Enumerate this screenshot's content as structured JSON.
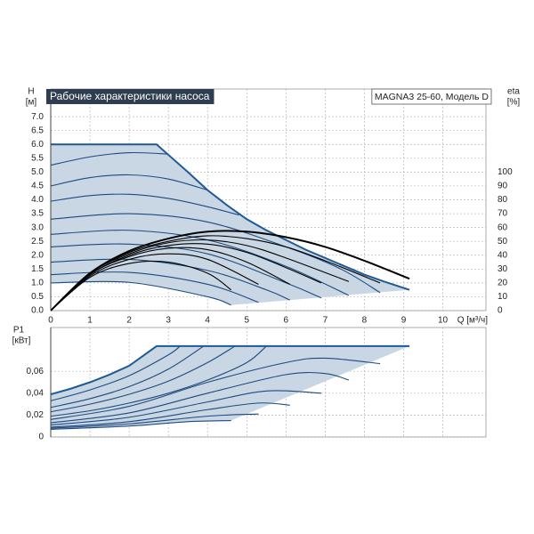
{
  "chart_data": [
    {
      "type": "line",
      "title": "Рабочие характеристики насоса",
      "annotation": "MAGNA3 25-60, Модель D",
      "ylabel": "H",
      "yunit": "[м]",
      "y2label": "eta",
      "y2unit": "[%]",
      "xlabel": "Q [м³/ч]",
      "xlim": [
        0,
        11.1
      ],
      "xticks": [
        0,
        1,
        2,
        3,
        4,
        5,
        6,
        7,
        8,
        9,
        10
      ],
      "ylim": [
        0,
        8
      ],
      "yticks": [
        {
          "value": 0,
          "label": "0.0"
        },
        0.5,
        {
          "value": 1,
          "label": "1.0"
        },
        1.5,
        {
          "value": 2,
          "label": "2.0"
        },
        2.5,
        {
          "value": 3,
          "label": "3.0"
        },
        3.5,
        {
          "value": 4,
          "label": "4.0"
        },
        4.5,
        {
          "value": 5,
          "label": "5.0"
        },
        5.5,
        {
          "value": 6,
          "label": "6.0"
        },
        6.5,
        {
          "value": 7,
          "label": "7.0"
        }
      ],
      "y2lim": [
        0,
        160
      ],
      "y2ticks": [
        0,
        10,
        20,
        30,
        40,
        50,
        60,
        70,
        80,
        90,
        100
      ],
      "grid": true,
      "fill_color": "#c9d6e4",
      "series": [
        {
          "color": "#1f5a94",
          "line_width": 2,
          "smooth": false,
          "x": [
            0,
            2.7,
            3.1,
            3.5,
            4,
            4.5,
            5,
            5.5,
            6,
            6.5,
            7,
            7.5,
            8,
            8.5,
            9.15
          ],
          "values": [
            6,
            6,
            5.5,
            5.0,
            4.35,
            3.8,
            3.3,
            2.9,
            2.55,
            2.2,
            1.9,
            1.6,
            1.3,
            1.05,
            0.75
          ]
        },
        {
          "color": "#1d4a7e",
          "x": [
            0,
            1,
            2,
            3
          ],
          "values": [
            5.25,
            5.55,
            5.7,
            5.65
          ]
        },
        {
          "color": "#1d4a7e",
          "x": [
            0,
            1,
            2,
            3,
            4
          ],
          "values": [
            4.5,
            4.8,
            4.9,
            4.75,
            4.35
          ]
        },
        {
          "color": "#1d4a7e",
          "x": [
            0,
            1,
            2,
            3,
            4,
            4.8
          ],
          "values": [
            3.95,
            4.15,
            4.2,
            4.05,
            3.75,
            3.45
          ]
        },
        {
          "color": "#1d4a7e",
          "x": [
            0,
            2,
            4,
            6,
            7.4,
            8.4
          ],
          "values": [
            3.3,
            3.5,
            3.2,
            2.3,
            1.5,
            0.65
          ]
        },
        {
          "color": "#1d4a7e",
          "x": [
            0,
            2,
            4,
            6,
            7.6
          ],
          "values": [
            2.75,
            2.9,
            2.55,
            1.6,
            0.55
          ]
        },
        {
          "color": "#1d4a7e",
          "x": [
            0,
            2,
            4,
            6,
            6.9
          ],
          "values": [
            2.3,
            2.4,
            2.05,
            1.0,
            0.46
          ]
        },
        {
          "color": "#1d4a7e",
          "x": [
            0,
            2,
            4,
            5.5,
            6.1
          ],
          "values": [
            1.75,
            1.85,
            1.45,
            0.75,
            0.38
          ]
        },
        {
          "color": "#1d4a7e",
          "x": [
            0,
            2,
            4,
            5.3
          ],
          "values": [
            1.3,
            1.38,
            0.95,
            0.3
          ]
        },
        {
          "color": "#1d4a7e",
          "x": [
            0,
            2,
            4,
            4.6
          ],
          "values": [
            1.0,
            1.02,
            0.5,
            0.2
          ]
        },
        {
          "color": "#000000",
          "line_width": 2,
          "axis": "y2",
          "x": [
            0,
            1,
            2,
            3,
            4,
            5,
            6,
            7,
            8,
            9.15
          ],
          "values": [
            0,
            27,
            43,
            52,
            57,
            57,
            53,
            46,
            36,
            23
          ]
        },
        {
          "color": "#000000",
          "axis": "y2",
          "x": [
            0,
            1,
            2,
            3,
            4,
            5,
            6,
            7,
            8.4
          ],
          "values": [
            0,
            27,
            42,
            50,
            54,
            52,
            46,
            36,
            20
          ]
        },
        {
          "color": "#000000",
          "axis": "y2",
          "x": [
            0,
            1,
            2,
            3,
            4,
            5,
            6,
            7.6
          ],
          "values": [
            0,
            27,
            41,
            49,
            51,
            47,
            38,
            21
          ]
        },
        {
          "color": "#000000",
          "axis": "y2",
          "x": [
            0,
            1,
            2,
            3,
            4,
            5,
            6,
            6.9
          ],
          "values": [
            0,
            26,
            40,
            47,
            48,
            42,
            31,
            20
          ]
        },
        {
          "color": "#000000",
          "axis": "y2",
          "x": [
            0,
            1,
            2,
            3,
            4,
            5,
            6.1
          ],
          "values": [
            0,
            26,
            39,
            45,
            44,
            35,
            19
          ]
        },
        {
          "color": "#000000",
          "axis": "y2",
          "x": [
            0,
            1,
            2,
            3,
            4,
            5.3
          ],
          "values": [
            0,
            25,
            37,
            41,
            37,
            19
          ]
        },
        {
          "color": "#000000",
          "axis": "y2",
          "x": [
            0,
            1,
            2,
            3,
            4,
            4.6
          ],
          "values": [
            0,
            24,
            34,
            35,
            27,
            15
          ]
        }
      ]
    },
    {
      "type": "line",
      "ylabel": "P1",
      "yunit": "[кВт]",
      "ylim": [
        0,
        0.1
      ],
      "yticks": [
        0,
        {
          "value": 0.02,
          "label": "0,02"
        },
        {
          "value": 0.04,
          "label": "0,04"
        },
        {
          "value": 0.06,
          "label": "0,06"
        }
      ],
      "grid": true,
      "fill_color": "#c9d6e4",
      "series": [
        {
          "color": "#1f5a94",
          "line_width": 2,
          "smooth": false,
          "x": [
            0,
            0.5,
            1,
            1.5,
            2,
            2.7,
            9.15
          ],
          "values": [
            0.039,
            0.044,
            0.05,
            0.057,
            0.065,
            0.083,
            0.083
          ]
        },
        {
          "color": "#1d4a7e",
          "x": [
            0,
            1,
            2,
            3,
            3.3
          ],
          "values": [
            0.033,
            0.043,
            0.056,
            0.075,
            0.083
          ]
        },
        {
          "color": "#1d4a7e",
          "x": [
            0,
            1,
            2,
            3,
            3.9
          ],
          "values": [
            0.027,
            0.035,
            0.046,
            0.062,
            0.083
          ]
        },
        {
          "color": "#1d4a7e",
          "x": [
            0,
            1,
            2,
            3,
            4,
            4.7
          ],
          "values": [
            0.023,
            0.03,
            0.039,
            0.051,
            0.068,
            0.083
          ]
        },
        {
          "color": "#1d4a7e",
          "x": [
            0,
            1,
            2,
            3,
            4,
            5,
            5.5
          ],
          "values": [
            0.019,
            0.024,
            0.031,
            0.04,
            0.052,
            0.068,
            0.083
          ]
        },
        {
          "color": "#1d4a7e",
          "x": [
            0,
            2,
            4,
            6,
            7,
            8.4
          ],
          "values": [
            0.016,
            0.028,
            0.05,
            0.068,
            0.072,
            0.067
          ]
        },
        {
          "color": "#1d4a7e",
          "x": [
            0,
            2,
            4,
            6,
            7,
            7.6
          ],
          "values": [
            0.013,
            0.022,
            0.04,
            0.057,
            0.058,
            0.052
          ]
        },
        {
          "color": "#1d4a7e",
          "x": [
            0,
            2,
            4,
            5.5,
            6.9
          ],
          "values": [
            0.011,
            0.018,
            0.032,
            0.042,
            0.04
          ]
        },
        {
          "color": "#1d4a7e",
          "x": [
            0,
            2,
            4,
            5.3,
            6.1
          ],
          "values": [
            0.009,
            0.014,
            0.025,
            0.031,
            0.029
          ]
        },
        {
          "color": "#1d4a7e",
          "x": [
            0,
            2,
            4,
            5.3
          ],
          "values": [
            0.008,
            0.012,
            0.019,
            0.021
          ]
        },
        {
          "color": "#1d4a7e",
          "x": [
            0,
            2,
            3.5,
            4.6
          ],
          "values": [
            0.007,
            0.01,
            0.014,
            0.015
          ]
        }
      ]
    }
  ]
}
